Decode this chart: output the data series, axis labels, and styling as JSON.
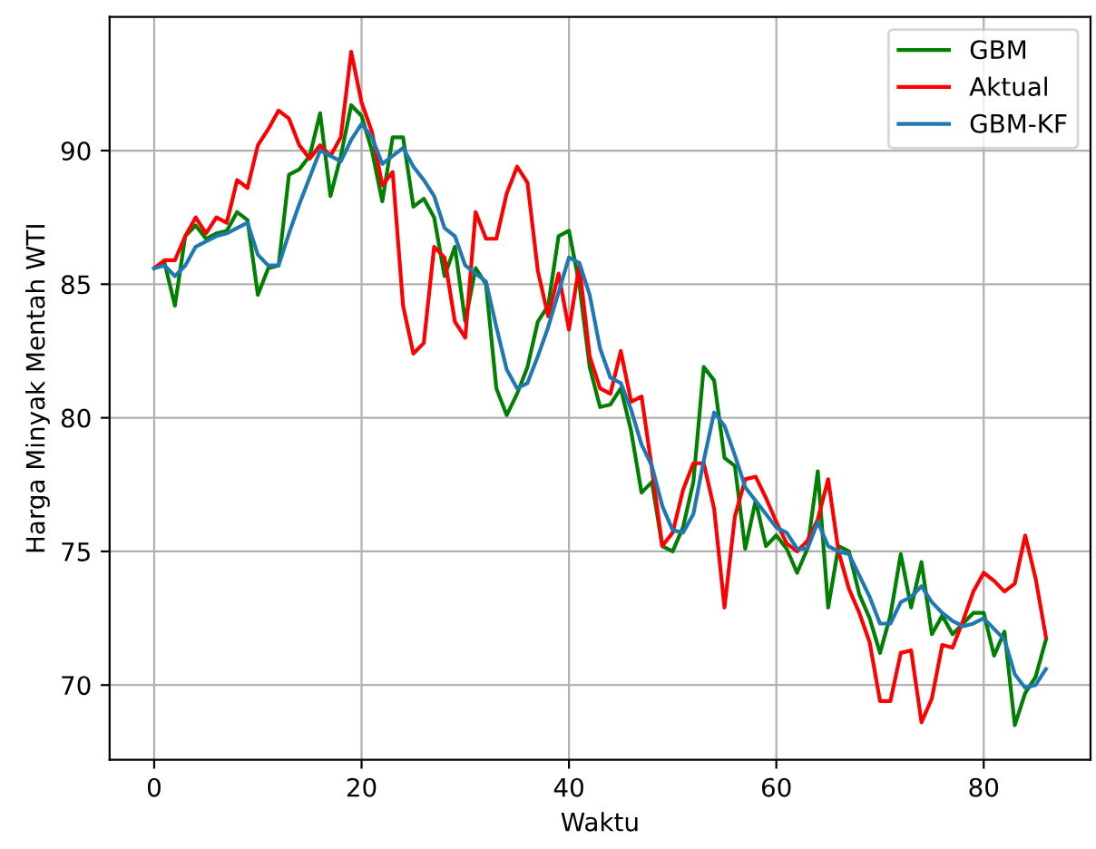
{
  "chart_data": {
    "type": "line",
    "xlabel": "Waktu",
    "ylabel": "Harga Minyak Mentah WTI",
    "x": [
      0,
      1,
      2,
      3,
      4,
      5,
      6,
      7,
      8,
      9,
      10,
      11,
      12,
      13,
      14,
      15,
      16,
      17,
      18,
      19,
      20,
      21,
      22,
      23,
      24,
      25,
      26,
      27,
      28,
      29,
      30,
      31,
      32,
      33,
      34,
      35,
      36,
      37,
      38,
      39,
      40,
      41,
      42,
      43,
      44,
      45,
      46,
      47,
      48,
      49,
      50,
      51,
      52,
      53,
      54,
      55,
      56,
      57,
      58,
      59,
      60,
      61,
      62,
      63,
      64,
      65,
      66,
      67,
      68,
      69,
      70,
      71,
      72,
      73,
      74,
      75,
      76,
      77,
      78,
      79,
      80,
      81,
      82,
      83,
      84,
      85,
      86
    ],
    "series": [
      {
        "name": "GBM",
        "color": "#008000",
        "values": [
          85.6,
          85.8,
          84.2,
          86.8,
          87.2,
          86.7,
          86.9,
          87.0,
          87.7,
          87.4,
          84.6,
          85.6,
          85.7,
          89.1,
          89.3,
          89.8,
          91.4,
          88.3,
          89.8,
          91.7,
          91.3,
          90.0,
          88.1,
          90.5,
          90.5,
          87.9,
          88.2,
          87.5,
          85.3,
          86.4,
          83.6,
          85.6,
          85.0,
          81.1,
          80.1,
          80.9,
          81.9,
          83.6,
          84.2,
          86.8,
          87.0,
          85.0,
          81.9,
          80.4,
          80.5,
          81.1,
          79.5,
          77.2,
          77.6,
          75.2,
          75.0,
          75.9,
          77.6,
          81.9,
          81.4,
          78.5,
          78.2,
          75.1,
          76.9,
          75.2,
          75.6,
          75.1,
          74.2,
          75.1,
          78.0,
          72.9,
          75.2,
          75.0,
          73.4,
          72.5,
          71.2,
          72.6,
          74.9,
          72.9,
          74.6,
          71.9,
          72.6,
          71.9,
          72.3,
          72.7,
          72.7,
          71.1,
          72.0,
          68.5,
          69.7,
          70.3,
          71.7
        ]
      },
      {
        "name": "Aktual",
        "color": "#ff0000",
        "values": [
          85.6,
          85.9,
          85.9,
          86.8,
          87.5,
          86.9,
          87.5,
          87.3,
          88.9,
          88.6,
          90.2,
          90.8,
          91.5,
          91.2,
          90.2,
          89.7,
          90.2,
          89.8,
          90.5,
          93.7,
          91.8,
          90.7,
          88.7,
          89.2,
          84.2,
          82.4,
          82.8,
          86.4,
          86.0,
          83.6,
          83.0,
          87.7,
          86.7,
          86.7,
          88.4,
          89.4,
          88.8,
          85.5,
          83.8,
          85.4,
          83.3,
          85.7,
          82.3,
          81.1,
          80.9,
          82.5,
          80.6,
          80.8,
          78.1,
          75.2,
          75.7,
          77.3,
          78.3,
          78.3,
          76.6,
          72.9,
          76.3,
          77.7,
          77.8,
          77.0,
          76.1,
          75.3,
          75.0,
          75.4,
          76.2,
          77.7,
          75.0,
          73.6,
          72.7,
          71.6,
          69.4,
          69.4,
          71.2,
          71.3,
          68.6,
          69.5,
          71.5,
          71.4,
          72.4,
          73.5,
          74.2,
          73.9,
          73.5,
          73.8,
          75.6,
          74.0,
          71.8
        ]
      },
      {
        "name": "GBM-KF",
        "color": "#1f77b4",
        "values": [
          85.6,
          85.7,
          85.3,
          85.7,
          86.4,
          86.6,
          86.8,
          86.9,
          87.1,
          87.3,
          86.1,
          85.7,
          85.7,
          86.9,
          88.0,
          89.0,
          90.0,
          89.8,
          89.6,
          90.4,
          91.0,
          90.5,
          89.5,
          89.8,
          90.1,
          89.4,
          88.9,
          88.3,
          87.1,
          86.8,
          85.7,
          85.4,
          85.1,
          83.4,
          81.8,
          81.1,
          81.3,
          82.3,
          83.4,
          84.7,
          86.0,
          85.8,
          84.6,
          82.6,
          81.5,
          81.3,
          80.3,
          79.0,
          78.2,
          76.7,
          75.8,
          75.7,
          76.4,
          78.4,
          80.2,
          79.7,
          78.6,
          77.4,
          76.9,
          76.4,
          75.9,
          75.7,
          75.1,
          75.1,
          76.1,
          75.2,
          75.0,
          74.9,
          74.1,
          73.3,
          72.3,
          72.3,
          73.1,
          73.3,
          73.7,
          73.1,
          72.7,
          72.4,
          72.2,
          72.3,
          72.5,
          72.1,
          71.7,
          70.4,
          69.9,
          70.0,
          70.6
        ]
      }
    ],
    "xlim": [
      -4.3,
      90.3
    ],
    "ylim": [
      67.2,
      95.0
    ],
    "xticks": [
      0,
      20,
      40,
      60,
      80
    ],
    "yticks": [
      70,
      75,
      80,
      85,
      90
    ],
    "grid": true,
    "legend": "top right"
  }
}
